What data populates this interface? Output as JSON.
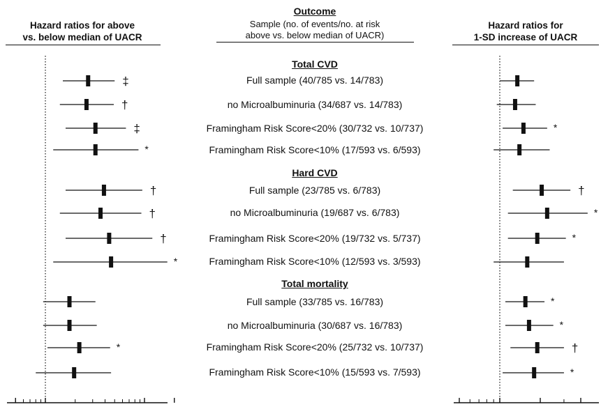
{
  "header": {
    "left_line1": "Hazard ratios for above",
    "left_line2": "vs. below median of UACR",
    "right_line1": "Hazard ratios for",
    "right_line2": "1-SD increase of UACR",
    "outcome": "Outcome",
    "sample_line1": "Sample (no. of events/no. at risk",
    "sample_line2": "above vs. below median of UACR)"
  },
  "chart_data": [
    {
      "type": "forest",
      "name": "Hazard ratios for above vs. below median of UACR",
      "xscale": "log",
      "xlim": [
        0.4,
        20
      ],
      "xticks": [
        {
          "v": 0.5,
          "label": "0,5"
        },
        {
          "v": 1,
          "label": "1"
        },
        {
          "v": 10,
          "label": "10"
        },
        {
          "v": 20,
          "label": "20"
        }
      ],
      "minor_ticks": [
        0.6,
        0.7,
        0.8,
        0.9,
        2,
        3,
        4,
        5,
        6,
        7,
        8,
        9
      ],
      "reference_line": 1,
      "rows": [
        {
          "hr": 2.7,
          "lo": 1.5,
          "hi": 5.0,
          "mark": "‡"
        },
        {
          "hr": 2.6,
          "lo": 1.4,
          "hi": 4.9,
          "mark": "†"
        },
        {
          "hr": 3.2,
          "lo": 1.6,
          "hi": 6.5,
          "mark": "‡"
        },
        {
          "hr": 3.2,
          "lo": 1.2,
          "hi": 8.7,
          "mark": "*"
        },
        {
          "hr": 3.9,
          "lo": 1.6,
          "hi": 9.5,
          "mark": "†"
        },
        {
          "hr": 3.6,
          "lo": 1.4,
          "hi": 9.3,
          "mark": "†"
        },
        {
          "hr": 4.4,
          "lo": 1.6,
          "hi": 12.0,
          "mark": "†"
        },
        {
          "hr": 4.6,
          "lo": 1.2,
          "hi": 17.0,
          "mark": "*"
        },
        {
          "hr": 1.75,
          "lo": 0.95,
          "hi": 3.2,
          "mark": ""
        },
        {
          "hr": 1.75,
          "lo": 0.95,
          "hi": 3.3,
          "mark": ""
        },
        {
          "hr": 2.2,
          "lo": 1.05,
          "hi": 4.5,
          "mark": "*"
        },
        {
          "hr": 1.95,
          "lo": 0.8,
          "hi": 4.6,
          "mark": ""
        }
      ]
    },
    {
      "type": "forest",
      "name": "Hazard ratios for 1-SD increase of UACR",
      "xscale": "log",
      "xlim": [
        0.5,
        5
      ],
      "xticks": [
        {
          "v": 0.5,
          "label": "0.5"
        },
        {
          "v": 1,
          "label": "1"
        },
        {
          "v": 2,
          "label": "2"
        },
        {
          "v": 4,
          "label": "4"
        }
      ],
      "minor_ticks": [
        0.6,
        0.7,
        0.8,
        0.9,
        3
      ],
      "reference_line": 1,
      "rows": [
        {
          "hr": 1.35,
          "lo": 1.0,
          "hi": 1.8,
          "mark": ""
        },
        {
          "hr": 1.3,
          "lo": 0.95,
          "hi": 1.85,
          "mark": ""
        },
        {
          "hr": 1.5,
          "lo": 1.05,
          "hi": 2.25,
          "mark": "*"
        },
        {
          "hr": 1.4,
          "lo": 0.9,
          "hi": 2.35,
          "mark": ""
        },
        {
          "hr": 2.05,
          "lo": 1.25,
          "hi": 3.35,
          "mark": "†"
        },
        {
          "hr": 2.25,
          "lo": 1.15,
          "hi": 4.5,
          "mark": "*"
        },
        {
          "hr": 1.9,
          "lo": 1.15,
          "hi": 3.1,
          "mark": "*"
        },
        {
          "hr": 1.6,
          "lo": 0.9,
          "hi": 3.0,
          "mark": ""
        },
        {
          "hr": 1.55,
          "lo": 1.1,
          "hi": 2.15,
          "mark": "*"
        },
        {
          "hr": 1.65,
          "lo": 1.1,
          "hi": 2.5,
          "mark": "*"
        },
        {
          "hr": 1.9,
          "lo": 1.2,
          "hi": 3.0,
          "mark": "†"
        },
        {
          "hr": 1.8,
          "lo": 1.05,
          "hi": 3.0,
          "mark": "*"
        }
      ]
    }
  ],
  "sections": [
    {
      "title": "Total CVD",
      "rows": [
        "Full sample (40/785 vs. 14/783)",
        "no Microalbuminuria (34/687 vs. 14/783)",
        "Framingham Risk Score<20% (30/732 vs. 10/737)",
        "Framingham Risk Score<10% (17/593 vs. 6/593)"
      ]
    },
    {
      "title": "Hard CVD",
      "rows": [
        "Full sample (23/785 vs. 6/783)",
        "no Microalbuminuria (19/687 vs. 6/783)",
        "Framingham Risk Score<20% (19/732 vs. 5/737)",
        "Framingham Risk Score<10% (12/593 vs. 3/593)"
      ]
    },
    {
      "title": "Total mortality",
      "rows": [
        "Full sample (33/785 vs. 16/783)",
        "no Microalbuminuria (30/687 vs. 16/783)",
        "Framingham Risk Score<20% (25/732 vs. 10/737)",
        "Framingham Risk Score<10% (15/593 vs. 7/593)"
      ]
    }
  ]
}
